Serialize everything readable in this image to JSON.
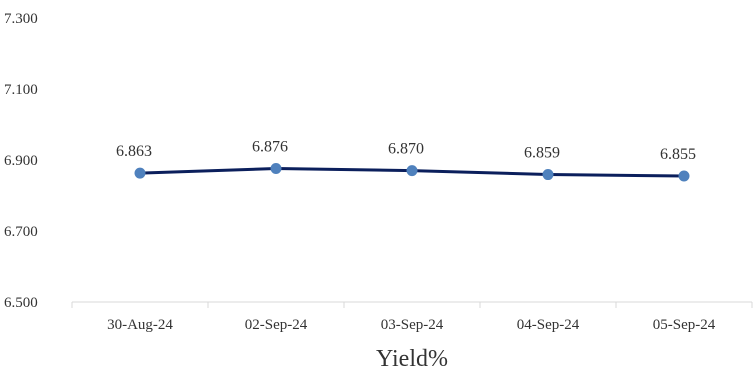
{
  "chart_data": {
    "type": "line",
    "title": "",
    "xlabel": "Yield%",
    "ylabel": "",
    "categories": [
      "30-Aug-24",
      "02-Sep-24",
      "03-Sep-24",
      "04-Sep-24",
      "05-Sep-24"
    ],
    "series": [
      {
        "values": [
          6.863,
          6.876,
          6.87,
          6.859,
          6.855
        ]
      }
    ],
    "data_labels": [
      "6.863",
      "6.876",
      "6.870",
      "6.859",
      "6.855"
    ],
    "ylim": [
      6.5,
      7.3
    ],
    "y_ticks": [
      7.3,
      7.1,
      6.9,
      6.7,
      6.5
    ],
    "y_tick_labels": [
      "7.300",
      "7.100",
      "6.900",
      "6.700",
      "6.500"
    ],
    "grid": false,
    "legend": "none",
    "colors": {
      "line": "#0b1f5c",
      "marker": "#4f81bd",
      "axis": "#d9d9d9",
      "text": "#333333"
    }
  }
}
